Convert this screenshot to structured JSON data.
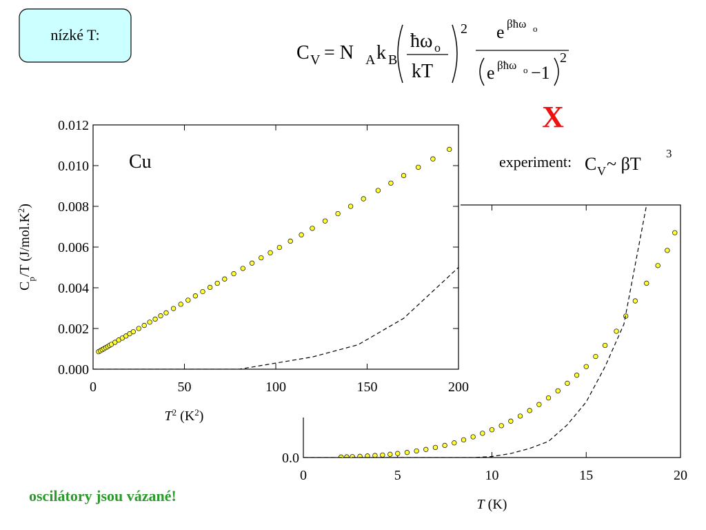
{
  "slide": {
    "label": "nízké T:",
    "formula": {
      "parts": [
        "C",
        "V",
        "= N",
        "A",
        "k",
        "B",
        "ħω",
        "o",
        "kT",
        "2",
        "e",
        "βħω",
        "o",
        "e",
        "βħω",
        "o",
        "−1",
        "2"
      ]
    },
    "cross": "X",
    "experiment": {
      "parts": [
        "experiment:",
        "C",
        "V",
        " ~ βT",
        "3"
      ]
    },
    "note": "oscilátory jsou vázané!"
  },
  "chart_data": [
    {
      "type": "scatter",
      "annotation": "Cu",
      "xlabel": {
        "parts": [
          "T",
          "2",
          " (K",
          "2",
          ")"
        ]
      },
      "ylabel": {
        "parts": [
          "C",
          "p",
          "/T (J/mol.K",
          "2",
          ")"
        ]
      },
      "xlim": [
        0,
        200
      ],
      "xticks": [
        0,
        50,
        100,
        150,
        200
      ],
      "ylim": [
        0,
        0.012
      ],
      "yticks": [
        {
          "value": 0,
          "label": "0.000"
        },
        {
          "value": 0.002,
          "label": "0.002"
        },
        {
          "value": 0.004,
          "label": "0.004"
        },
        {
          "value": 0.006,
          "label": "0.006"
        },
        {
          "value": 0.008,
          "label": "0.008"
        },
        {
          "value": 0.01,
          "label": "0.010"
        },
        {
          "value": 0.012,
          "label": "0.012"
        }
      ],
      "series": [
        {
          "color": "#ffff33",
          "marker": "circle",
          "x": [
            3,
            4,
            5,
            6,
            7,
            8,
            9,
            10,
            12,
            14,
            16,
            18,
            20,
            22,
            25,
            28,
            31,
            34,
            37,
            40,
            44,
            48,
            52,
            56,
            60,
            64,
            68,
            72,
            77,
            82,
            87,
            92,
            97,
            102,
            108,
            114,
            120,
            127,
            134,
            141,
            148,
            156,
            163,
            170,
            178,
            186,
            195
          ],
          "values": [
            0.00086,
            0.00091,
            0.00096,
            0.00101,
            0.00106,
            0.00111,
            0.00117,
            0.00122,
            0.00132,
            0.00143,
            0.00153,
            0.00163,
            0.00174,
            0.00184,
            0.002,
            0.00215,
            0.00231,
            0.00246,
            0.00262,
            0.00277,
            0.00298,
            0.00319,
            0.00339,
            0.0036,
            0.00381,
            0.00402,
            0.00422,
            0.00443,
            0.00469,
            0.00495,
            0.00521,
            0.00547,
            0.00572,
            0.00598,
            0.00629,
            0.0066,
            0.00692,
            0.00728,
            0.00764,
            0.008,
            0.00837,
            0.00878,
            0.00914,
            0.00951,
            0.00992,
            0.01033,
            0.0108
          ]
        },
        {
          "color": "#000000",
          "line_style": "dashed",
          "x": [
            0,
            80,
            100,
            120,
            145,
            170,
            200
          ],
          "values": [
            0,
            0,
            0.0003,
            0.0006,
            0.0012,
            0.0025,
            0.005
          ]
        }
      ]
    },
    {
      "type": "scatter",
      "xlabel": {
        "parts": [
          "T",
          " (K)"
        ]
      },
      "xlim": [
        0,
        20
      ],
      "xticks": [
        0,
        5,
        10,
        15,
        20
      ],
      "ylim": [
        0,
        5
      ],
      "yticks": [
        {
          "value": 0,
          "label": "0.0"
        }
      ],
      "series": [
        {
          "color": "#ffff33",
          "marker": "circle",
          "x": [
            2,
            2.3,
            2.6,
            3,
            3.4,
            3.8,
            4.2,
            4.6,
            5,
            5.5,
            6,
            6.5,
            7,
            7.5,
            8,
            8.5,
            9,
            9.5,
            10,
            10.5,
            11,
            11.5,
            12,
            12.5,
            13,
            13.5,
            14,
            14.5,
            15,
            15.5,
            16,
            16.6,
            17.1,
            17.6,
            18.2,
            18.8,
            19.3,
            19.7
          ],
          "values": [
            0.01,
            0.013,
            0.017,
            0.023,
            0.03,
            0.04,
            0.05,
            0.064,
            0.08,
            0.1,
            0.13,
            0.16,
            0.2,
            0.24,
            0.29,
            0.35,
            0.41,
            0.48,
            0.55,
            0.63,
            0.72,
            0.82,
            0.93,
            1.05,
            1.18,
            1.32,
            1.47,
            1.63,
            1.8,
            2.0,
            2.22,
            2.5,
            2.8,
            3.1,
            3.45,
            3.8,
            4.1,
            4.45
          ]
        },
        {
          "color": "#000000",
          "line_style": "dashed",
          "x": [
            0,
            9,
            10,
            11,
            12,
            13,
            14,
            15,
            16,
            17,
            18.2
          ],
          "values": [
            0,
            0,
            0.02,
            0.08,
            0.18,
            0.32,
            0.65,
            1.1,
            1.8,
            2.64,
            5
          ]
        }
      ]
    }
  ]
}
